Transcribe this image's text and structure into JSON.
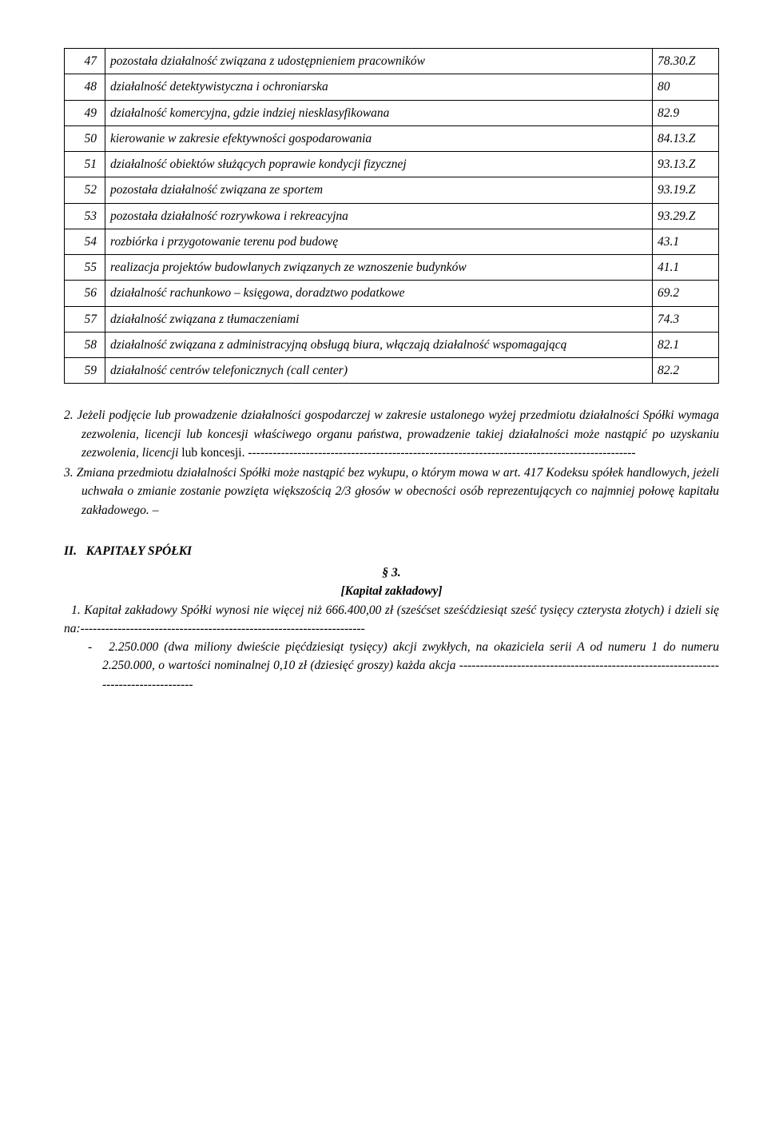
{
  "table": {
    "rows": [
      {
        "n": "47",
        "desc": "pozostała działalność związana z udostępnieniem pracowników",
        "code": "78.30.Z"
      },
      {
        "n": "48",
        "desc": "działalność detektywistyczna i ochroniarska",
        "code": "80"
      },
      {
        "n": "49",
        "desc": "działalność komercyjna, gdzie indziej niesklasyfikowana",
        "code": "82.9"
      },
      {
        "n": "50",
        "desc": "kierowanie w zakresie efektywności gospodarowania",
        "code": "84.13.Z"
      },
      {
        "n": "51",
        "desc": "działalność obiektów służących poprawie kondycji fizycznej",
        "code": "93.13.Z"
      },
      {
        "n": "52",
        "desc": "pozostała działalność związana ze sportem",
        "code": "93.19.Z"
      },
      {
        "n": "53",
        "desc": "pozostała działalność rozrywkowa i rekreacyjna",
        "code": "93.29.Z"
      },
      {
        "n": "54",
        "desc": "rozbiórka i przygotowanie terenu pod budowę",
        "code": "43.1"
      },
      {
        "n": "55",
        "desc": "realizacja projektów budowlanych związanych ze wznoszenie budynków",
        "code": "41.1"
      },
      {
        "n": "56",
        "desc": "działalność rachunkowo – księgowa, doradztwo podatkowe",
        "code": "69.2"
      },
      {
        "n": "57",
        "desc": "działalność związana z tłumaczeniami",
        "code": "74.3"
      },
      {
        "n": "58",
        "desc": "działalność związana z administracyjną obsługą biura, włączają działalność wspomagającą",
        "code": "82.1"
      },
      {
        "n": "59",
        "desc": "działalność centrów telefonicznych (call center)",
        "code": "82.2"
      }
    ]
  },
  "para2": {
    "lead": "2. Jeżeli podjęcie lub prowadzenie działalności gospodarczej w zakresie ustalonego wyżej przedmiotu działalności Spółki wymaga zezwolenia, licencji lub koncesji właściwego organu państwa, prowadzenie takiej działalności może nastąpić po uzyskaniu zezwolenia, licencji",
    "tail_plain": " lub koncesji. ----------------------------------------------------------------------------------------------"
  },
  "para3": {
    "lead": "3. Zmiana przedmiotu działalności Spółki może nastąpić bez wykupu, o którym mowa w art. 417 Kodeksu spółek handlowych, jeżeli uchwała o zmianie zostanie powzięta większością 2/3 głosów w obecności osób reprezentujących co najmniej połowę kapitału zakładowego.",
    "trail": " –"
  },
  "section2": {
    "roman": "II.",
    "title": "KAPITAŁY SPÓŁKI",
    "para_num": "§ 3.",
    "subtitle": "[Kapitał zakładowy]",
    "p1_it": "1. Kapitał zakładowy Spółki wynosi nie więcej niż 666.400,00 zł (sześćset sześćdziesiąt sześć tysięcy czterysta złotych) i dzieli się na:",
    "p1_dash": "---------------------------------------------------------------------",
    "bullet_dash": "-",
    "bullet_text": "2.250.000 (dwa miliony dwieście pięćdziesiąt tysięcy) akcji zwykłych, na okaziciela serii A od numeru 1 do numeru 2.250.000, o wartości nominalnej 0,10 zł (dziesięć groszy) każda akcja -------------------------------------------------------------------------------------"
  }
}
